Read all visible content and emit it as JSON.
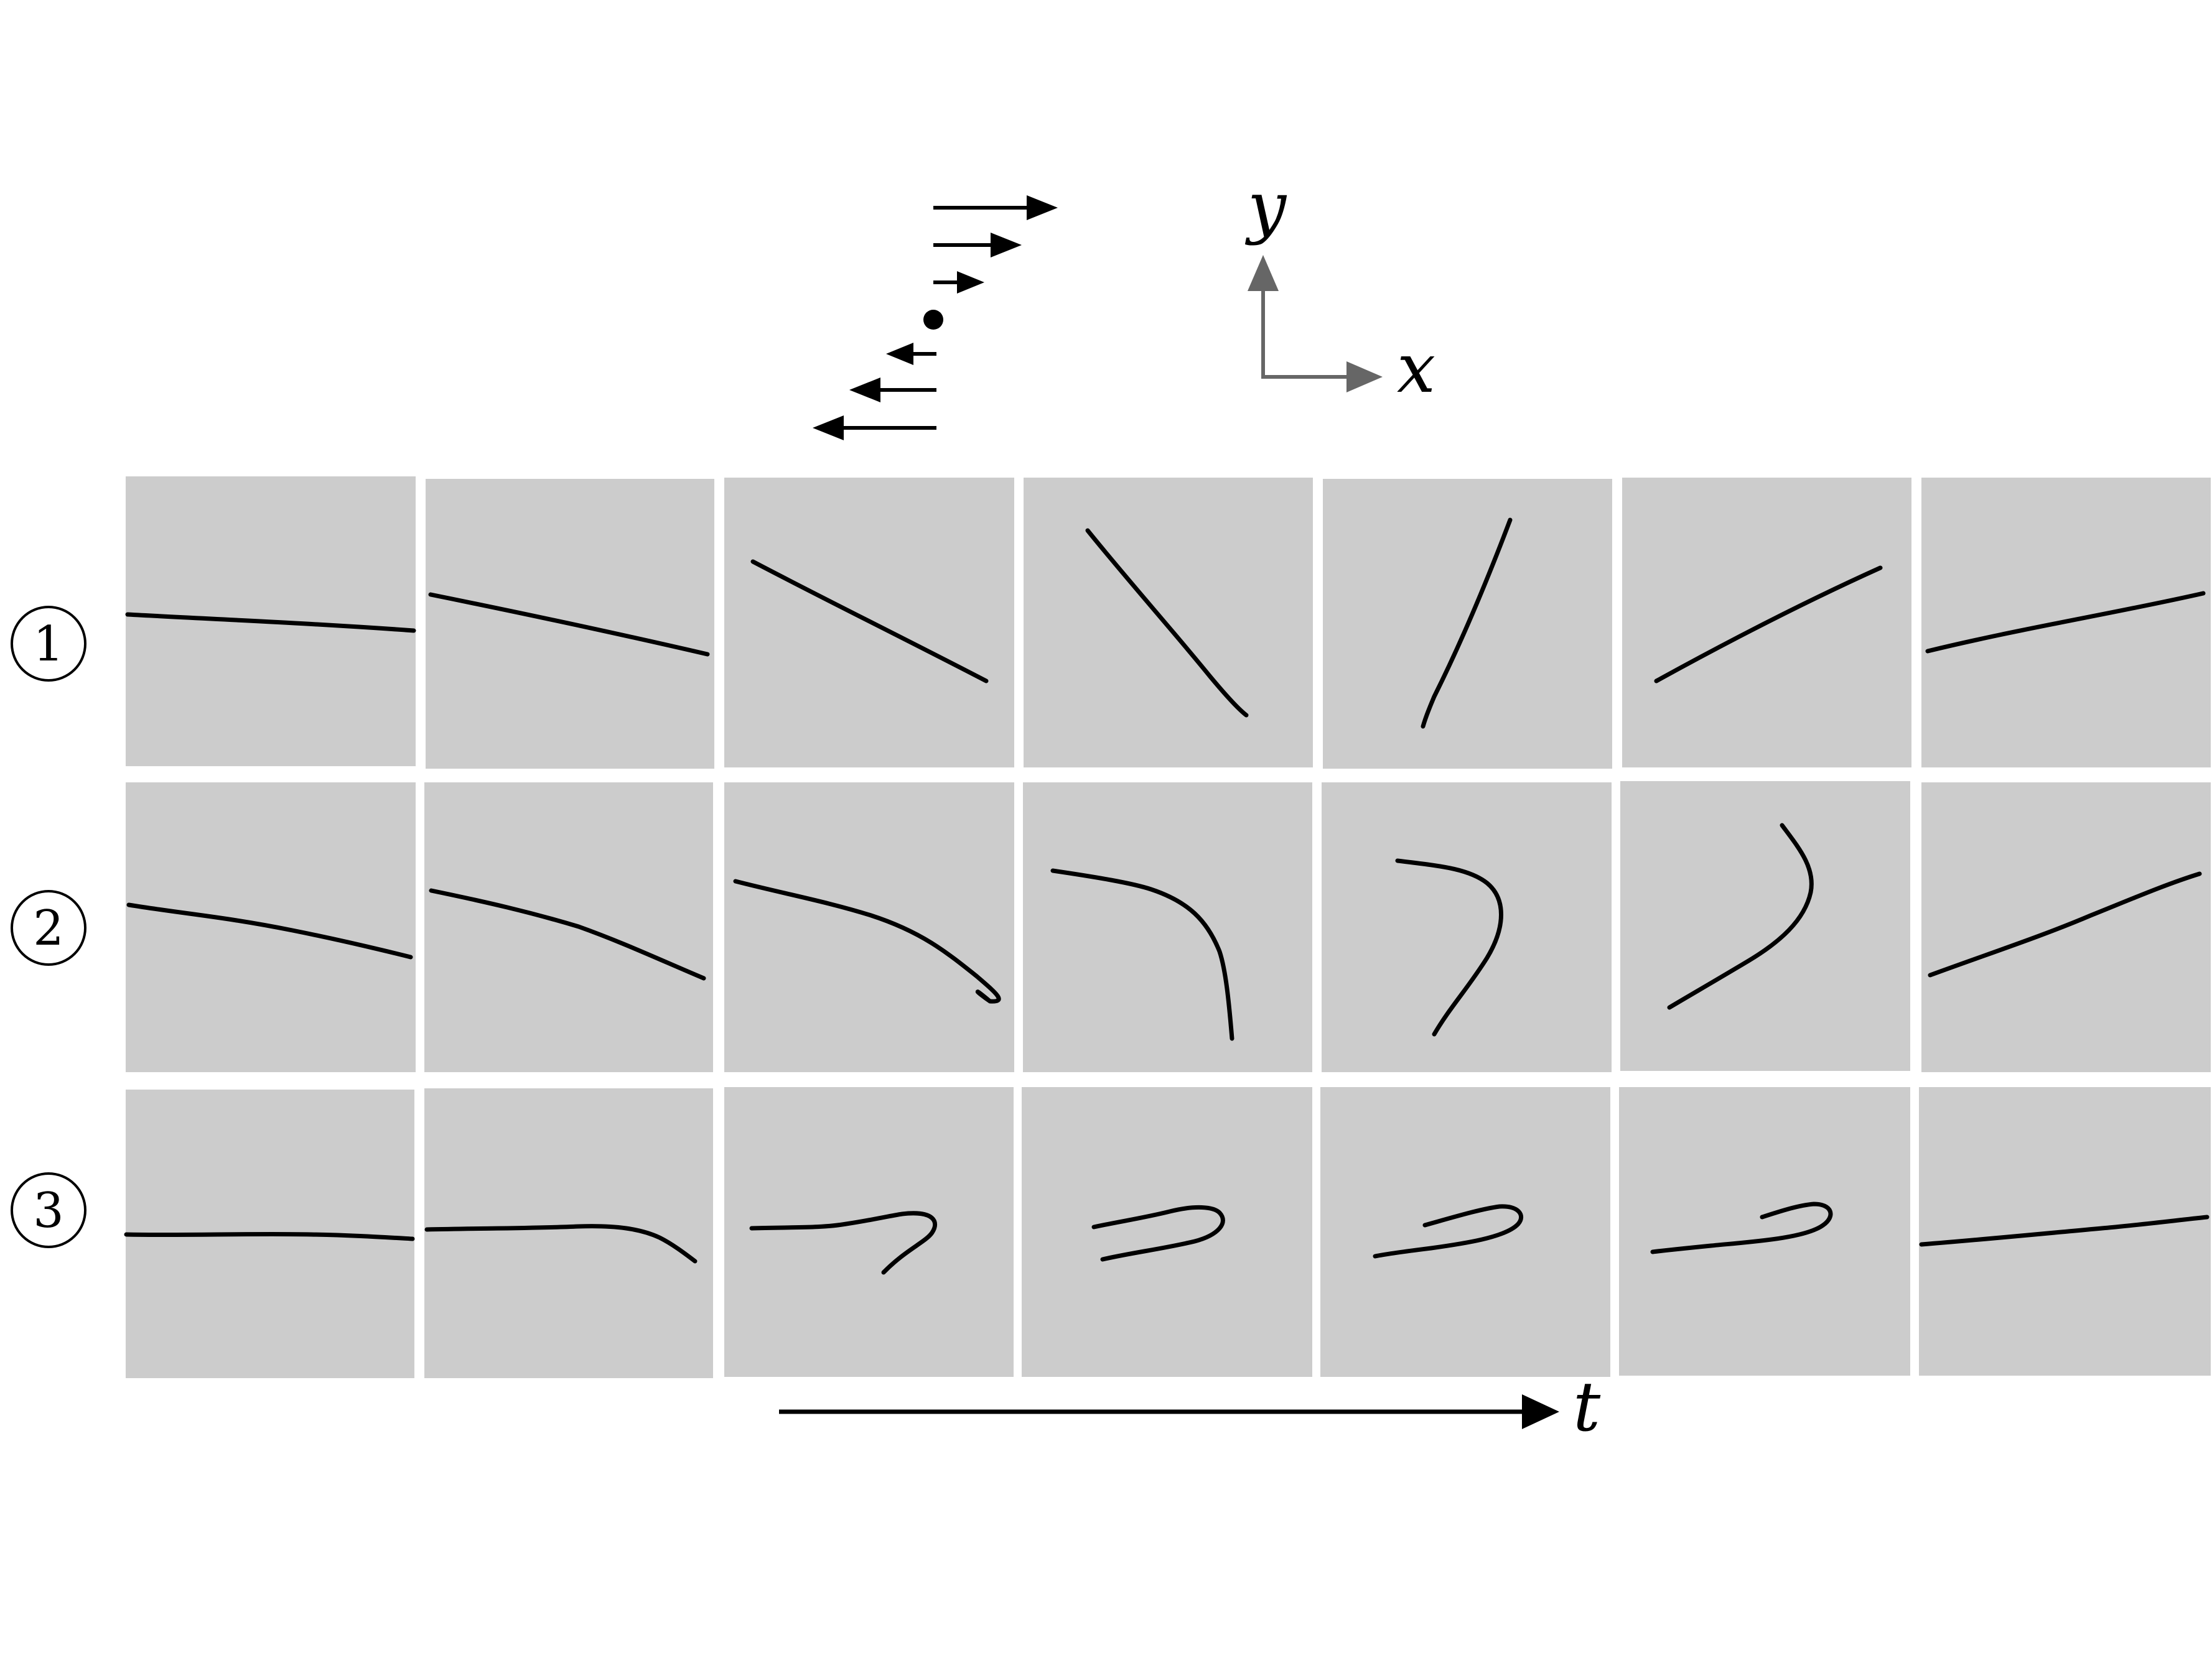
{
  "coordinate_axes": {
    "x_label": "x",
    "y_label": "y",
    "color": "#666666"
  },
  "time_axis": {
    "label": "t"
  },
  "shear_flow": {
    "arrow_count": 6,
    "description_icon": "shear-flow-icon"
  },
  "panel_color": "#cccccc",
  "rows": [
    {
      "label": "1",
      "panels": 7
    },
    {
      "label": "2",
      "panels": 7
    },
    {
      "label": "3",
      "panels": 7
    }
  ]
}
